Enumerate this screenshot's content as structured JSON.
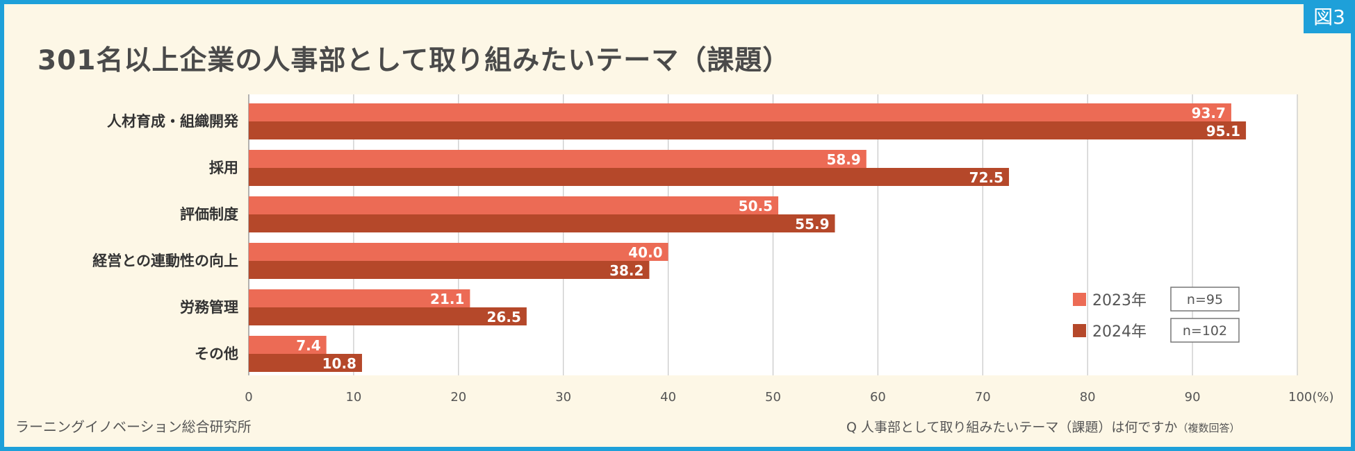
{
  "figure_badge": "図3",
  "chart_data": {
    "type": "bar",
    "orientation": "horizontal",
    "title": "301名以上企業の人事部として取り組みたいテーマ（課題）",
    "categories": [
      "人材育成・組織開発",
      "採用",
      "評価制度",
      "経営との連動性の向上",
      "労務管理",
      "その他"
    ],
    "series": [
      {
        "name": "2023年",
        "n_label": "n=95",
        "color": "#ec6b55",
        "values": [
          93.7,
          58.9,
          50.5,
          40.0,
          21.1,
          7.4
        ],
        "value_labels": [
          "93.7",
          "58.9",
          "50.5",
          "40.0",
          "21.1",
          "7.4"
        ]
      },
      {
        "name": "2024年",
        "n_label": "n=102",
        "color": "#b5482a",
        "values": [
          95.1,
          72.5,
          55.9,
          38.2,
          26.5,
          10.8
        ],
        "value_labels": [
          "95.1",
          "72.5",
          "55.9",
          "38.2",
          "26.5",
          "10.8"
        ]
      }
    ],
    "xlim": [
      0,
      100
    ],
    "x_ticks": [
      0,
      10,
      20,
      30,
      40,
      50,
      60,
      70,
      80,
      90,
      100
    ],
    "x_tick_labels": [
      "0",
      "10",
      "20",
      "30",
      "40",
      "50",
      "60",
      "70",
      "80",
      "90",
      "100(%)"
    ],
    "grid": true,
    "legend": "bottom-right"
  },
  "footer": {
    "source": "ラーニングイノベーション総合研究所",
    "question_main": "Q 人事部として取り組みたいテーマ（課題）は何ですか",
    "question_note": "（複数回答）"
  }
}
